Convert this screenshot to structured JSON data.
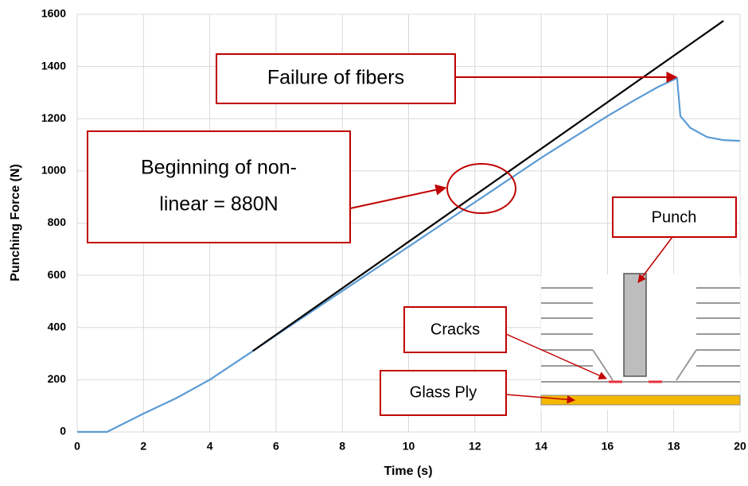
{
  "chart_data": {
    "type": "line",
    "xlabel": "Time (s)",
    "ylabel": "Punching Force (N)",
    "xlim": [
      0,
      20
    ],
    "ylim": [
      0,
      1600
    ],
    "xticks": [
      0,
      2,
      4,
      6,
      8,
      10,
      12,
      14,
      16,
      18,
      20
    ],
    "yticks": [
      0,
      200,
      400,
      600,
      800,
      1000,
      1200,
      1400,
      1600
    ],
    "grid": true,
    "series": [
      {
        "color": "#5b9bd5",
        "x": [
          0,
          0.9,
          2,
          3,
          4,
          5.3,
          6,
          7,
          8,
          9,
          10,
          11,
          12,
          13,
          14,
          15,
          16,
          16.8,
          17.5,
          18,
          18.1,
          18.2,
          18.5,
          19,
          19.5,
          20
        ],
        "values": [
          0,
          0,
          70,
          130,
          200,
          310,
          370,
          455,
          540,
          625,
          710,
          795,
          880,
          965,
          1050,
          1130,
          1210,
          1270,
          1320,
          1350,
          1355,
          1210,
          1165,
          1130,
          1118,
          1115
        ]
      },
      {
        "color": "#000000",
        "x": [
          5.3,
          19.5
        ],
        "values": [
          310,
          1575
        ]
      }
    ],
    "annotations": [
      {
        "lines": [
          "Failure of fibers"
        ]
      },
      {
        "lines": [
          "Beginning of non-",
          "linear = 880N"
        ]
      },
      {
        "lines": [
          "Punch"
        ]
      },
      {
        "lines": [
          "Cracks"
        ]
      },
      {
        "lines": [
          "Glass Ply"
        ]
      }
    ]
  }
}
